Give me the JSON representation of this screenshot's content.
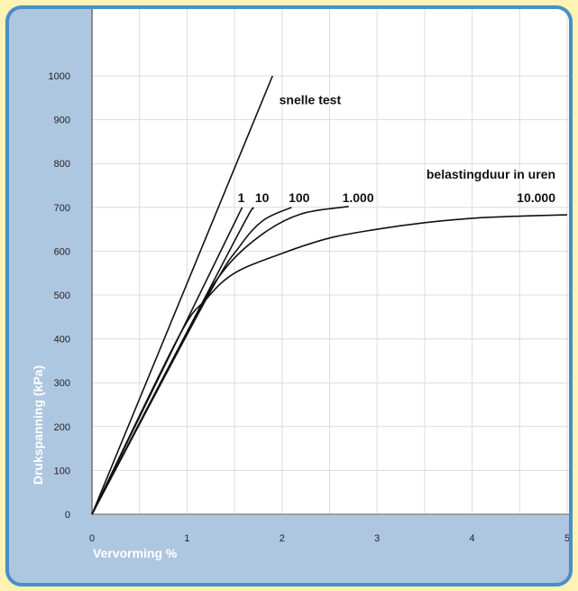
{
  "chart_data": {
    "type": "line",
    "title": "",
    "xlabel": "Vervorming %",
    "ylabel": "Drukspanning (kPa)",
    "xlim": [
      0,
      5
    ],
    "ylim": [
      0,
      1000
    ],
    "x_ticks": [
      "0",
      "1",
      "2",
      "3",
      "4",
      "5"
    ],
    "y_ticks": [
      "0",
      "100",
      "200",
      "300",
      "400",
      "500",
      "600",
      "700",
      "800",
      "900",
      "1000"
    ],
    "grid": true,
    "legend_title": "belastingduur in uren",
    "series": [
      {
        "name": "snelle test",
        "points": [
          [
            0,
            0
          ],
          [
            1.9,
            1000
          ]
        ]
      },
      {
        "name": "1",
        "points": [
          [
            0,
            0
          ],
          [
            1.58,
            700
          ]
        ]
      },
      {
        "name": "10",
        "points": [
          [
            0,
            0
          ],
          [
            1.48,
            615
          ],
          [
            1.7,
            700
          ]
        ]
      },
      {
        "name": "100",
        "points": [
          [
            0,
            0
          ],
          [
            1.2,
            490
          ],
          [
            1.55,
            610
          ],
          [
            1.8,
            670
          ],
          [
            2.1,
            700
          ]
        ]
      },
      {
        "name": "1.000",
        "points": [
          [
            0,
            0
          ],
          [
            1.05,
            435
          ],
          [
            1.4,
            560
          ],
          [
            1.8,
            640
          ],
          [
            2.2,
            685
          ],
          [
            2.7,
            702
          ]
        ]
      },
      {
        "name": "10.000",
        "points": [
          [
            0,
            0
          ],
          [
            0.9,
            400
          ],
          [
            1.2,
            490
          ],
          [
            1.5,
            550
          ],
          [
            2.0,
            595
          ],
          [
            2.5,
            630
          ],
          [
            3.0,
            650
          ],
          [
            3.5,
            665
          ],
          [
            4.0,
            675
          ],
          [
            4.5,
            680
          ],
          [
            5.0,
            683
          ]
        ]
      }
    ]
  }
}
